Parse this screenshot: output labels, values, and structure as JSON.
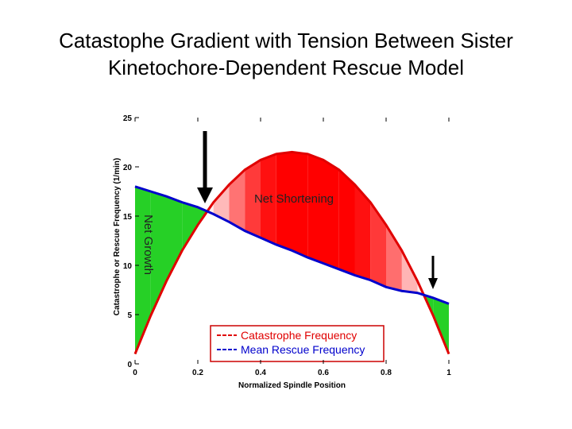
{
  "chart_data": {
    "type": "line",
    "title": "Catastophe Gradient with Tension Between Sister Kinetochore-Dependent Rescue Model",
    "x_label": "Normalized Spindle Position",
    "y_label": "Catastrophe or Rescue Frequency (1/min)",
    "annotations": [
      "Net Shortening",
      "Net Growth"
    ],
    "x": [
      0,
      0.05,
      0.1,
      0.15,
      0.2,
      0.25,
      0.3,
      0.35,
      0.4,
      0.45,
      0.5,
      0.55,
      0.6,
      0.65,
      0.7,
      0.75,
      0.8,
      0.85,
      0.9,
      0.95,
      1
    ],
    "series": [
      {
        "name": "Catastrophe Frequency",
        "color": "#e00000",
        "values": [
          1,
          4.9,
          8.4,
          11.5,
          14.1,
          16.4,
          18.2,
          19.7,
          20.7,
          21.3,
          21.5,
          21.3,
          20.7,
          19.7,
          18.2,
          16.4,
          14.1,
          11.5,
          8.4,
          4.9,
          1
        ]
      },
      {
        "name": "Mean Rescue Frequency",
        "color": "#0000cc",
        "values": [
          18,
          17.5,
          17,
          16.4,
          15.9,
          15.2,
          14.4,
          13.5,
          12.8,
          12.1,
          11.5,
          10.8,
          10.2,
          9.6,
          9,
          8.5,
          7.8,
          7.4,
          7.2,
          6.7,
          6.1
        ]
      }
    ],
    "xlim": [
      0,
      1
    ],
    "xticks": [
      0,
      0.2,
      0.4,
      0.6,
      0.8,
      1
    ],
    "ylim": [
      0,
      25
    ],
    "yticks": [
      0,
      5,
      10,
      15,
      20,
      25
    ],
    "fill_colors": {
      "growth": "#00c800",
      "shortening": "#ff0000"
    }
  }
}
